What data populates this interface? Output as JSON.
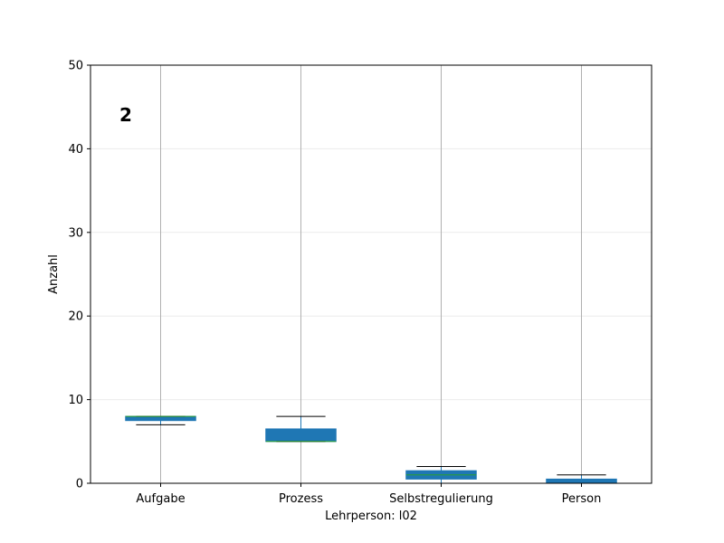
{
  "chart_data": {
    "type": "box",
    "panel_label": "2",
    "xlabel": "Lehrperson: l02",
    "ylabel": "Anzahl",
    "ylim": [
      0,
      50
    ],
    "yticks": [
      0,
      10,
      20,
      30,
      40,
      50
    ],
    "grid": true,
    "categories": [
      "Aufgabe",
      "Prozess",
      "Selbstregulierung",
      "Person"
    ],
    "boxes": [
      {
        "category": "Aufgabe",
        "whisker_low": 7,
        "q1": 7.5,
        "median": 8,
        "q3": 8,
        "whisker_high": 8
      },
      {
        "category": "Prozess",
        "whisker_low": 5,
        "q1": 5,
        "median": 5,
        "q3": 6.5,
        "whisker_high": 8
      },
      {
        "category": "Selbstregulierung",
        "whisker_low": 0,
        "q1": 0.5,
        "median": 1,
        "q3": 1.5,
        "whisker_high": 2
      },
      {
        "category": "Person",
        "whisker_low": 0,
        "q1": 0,
        "median": 0,
        "q3": 0.5,
        "whisker_high": 1
      }
    ],
    "colors": {
      "box_fill": "#1f77b4",
      "median": "#2ca02c",
      "whisker": "#000000",
      "grid": "#b0b0b0"
    }
  }
}
